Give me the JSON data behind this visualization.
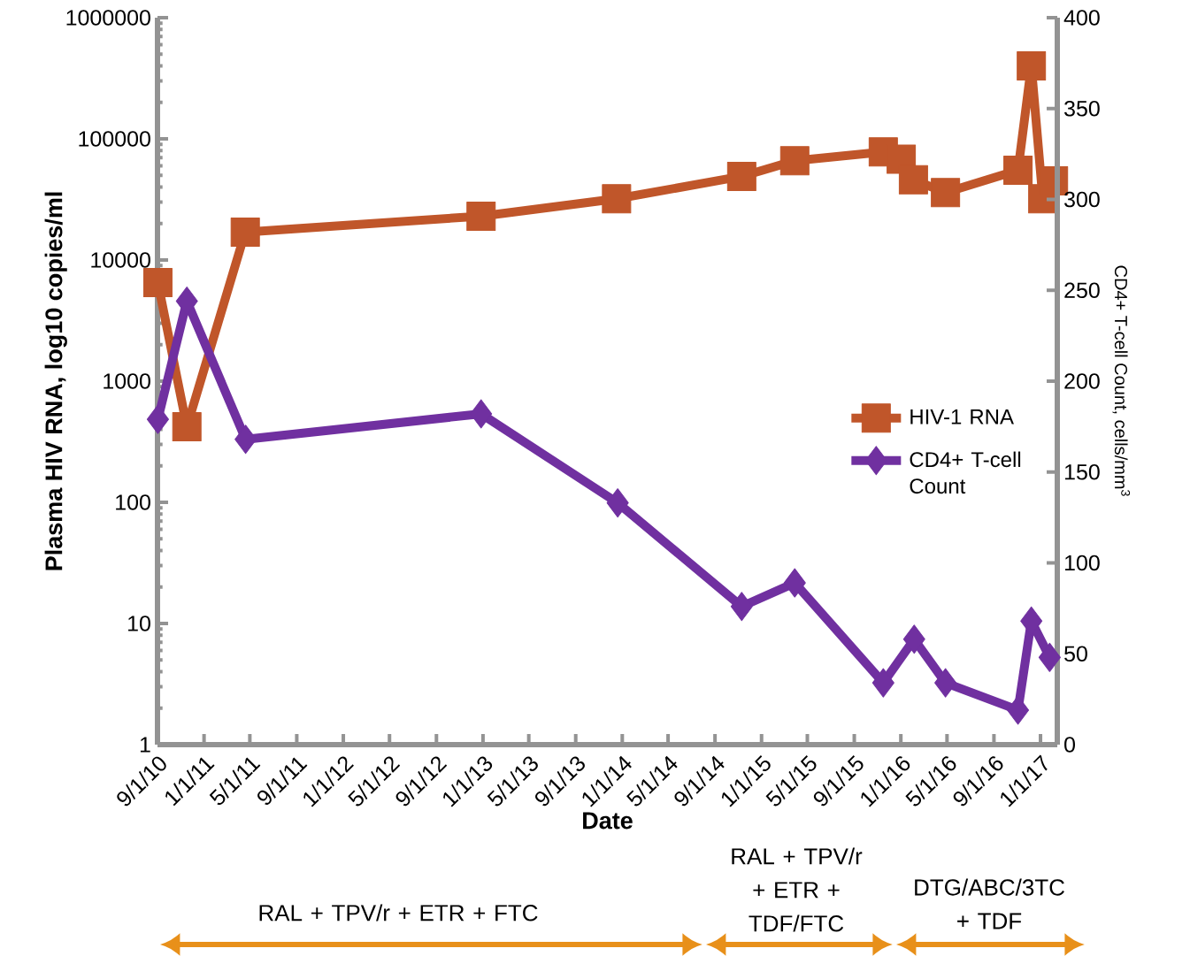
{
  "chart_data": {
    "type": "line",
    "xlabel": "Date",
    "ylabel": "Plasma HIV RNA, log10 copies/ml",
    "y2label": "CD4+ T-cell Count, cells/mm$^{3}$",
    "xlim": [
      "2010-09-01",
      "2017-02-14"
    ],
    "xticks": [
      {
        "value": "2010-09-01",
        "label": "9/1/10"
      },
      {
        "value": "2011-01-01",
        "label": "1/1/11"
      },
      {
        "value": "2011-05-01",
        "label": "5/1/11"
      },
      {
        "value": "2011-09-01",
        "label": "9/1/11"
      },
      {
        "value": "2012-01-01",
        "label": "1/1/12"
      },
      {
        "value": "2012-05-01",
        "label": "5/1/12"
      },
      {
        "value": "2012-09-01",
        "label": "9/1/12"
      },
      {
        "value": "2013-01-01",
        "label": "1/1/13"
      },
      {
        "value": "2013-05-01",
        "label": "5/1/13"
      },
      {
        "value": "2013-09-01",
        "label": "9/1/13"
      },
      {
        "value": "2014-01-01",
        "label": "1/1/14"
      },
      {
        "value": "2014-05-01",
        "label": "5/1/14"
      },
      {
        "value": "2014-09-01",
        "label": "9/1/14"
      },
      {
        "value": "2015-01-01",
        "label": "1/1/15"
      },
      {
        "value": "2015-05-01",
        "label": "5/1/15"
      },
      {
        "value": "2015-09-01",
        "label": "9/1/15"
      },
      {
        "value": "2016-01-01",
        "label": "1/1/16"
      },
      {
        "value": "2016-05-01",
        "label": "5/1/16"
      },
      {
        "value": "2016-09-01",
        "label": "9/1/16"
      },
      {
        "value": "2017-01-01",
        "label": "1/1/17"
      }
    ],
    "ylim": [
      1,
      1000000
    ],
    "yticks": [
      1,
      10,
      100,
      1000,
      10000,
      100000,
      1000000
    ],
    "log": true,
    "y2lim": [
      0,
      400
    ],
    "y2ticks": [
      0,
      50,
      100,
      150,
      200,
      250,
      300,
      350,
      400
    ],
    "grid": false,
    "legend": "right",
    "series": [
      {
        "name": "HIV-1 RNA",
        "color": "#c0562a",
        "marker": "square",
        "x": [
          "2010-09-02",
          "2010-11-17",
          "2011-04-19",
          "2012-12-27",
          "2013-12-17",
          "2014-11-10",
          "2015-03-29",
          "2015-11-16",
          "2016-01-02",
          "2016-02-03",
          "2016-04-27",
          "2016-11-03",
          "2016-12-08",
          "2017-01-07",
          "2017-02-04"
        ],
        "values": [
          6500,
          420,
          17000,
          23000,
          32000,
          49000,
          66000,
          78000,
          68000,
          46000,
          36000,
          55000,
          400000,
          32000,
          45000
        ]
      },
      {
        "name": "CD4+ T-cell Count",
        "color": "#7030a0",
        "marker": "diamond",
        "axis": "y2",
        "x": [
          "2010-09-02",
          "2010-11-17",
          "2011-04-20",
          "2012-12-27",
          "2013-12-20",
          "2014-11-10",
          "2015-03-29",
          "2015-11-16",
          "2016-02-05",
          "2016-04-27",
          "2016-11-03",
          "2016-12-08",
          "2017-01-25"
        ],
        "values": [
          179,
          244,
          168,
          182,
          133,
          76,
          89,
          34,
          58,
          34,
          19,
          68,
          48
        ]
      }
    ],
    "annotations": [
      "RAL + TPV/r + ETR + FTC",
      "RAL + TPV/r + ETR + TDF/FTC",
      "DTG/ABC/3TC + TDF"
    ]
  }
}
